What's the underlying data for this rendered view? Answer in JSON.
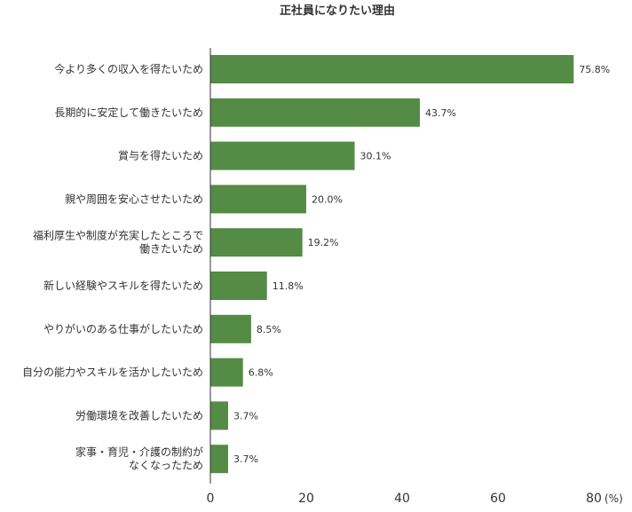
{
  "chart_data": {
    "type": "bar",
    "orientation": "horizontal",
    "title": "正社員になりたい理由",
    "categories": [
      [
        "今より多くの収入を得たいため"
      ],
      [
        "長期的に安定して働きたいため"
      ],
      [
        "賞与を得たいため"
      ],
      [
        "親や周囲を安心させたいため"
      ],
      [
        "福利厚生や制度が充実したところで",
        "働きたいため"
      ],
      [
        "新しい経験やスキルを得たいため"
      ],
      [
        "やりがいのある仕事がしたいため"
      ],
      [
        "自分の能力やスキルを活かしたいため"
      ],
      [
        "労働環境を改善したいため"
      ],
      [
        "家事・育児・介護の制約が",
        "なくなったため"
      ]
    ],
    "values": [
      75.8,
      43.7,
      30.1,
      20.0,
      19.2,
      11.8,
      8.5,
      6.8,
      3.7,
      3.7
    ],
    "value_labels": [
      "75.8%",
      "43.7%",
      "30.1%",
      "20.0%",
      "19.2%",
      "11.8%",
      "8.5%",
      "6.8%",
      "3.7%",
      "3.7%"
    ],
    "x_ticks": [
      0,
      20,
      40,
      60,
      80
    ],
    "x_unit": "(%)",
    "xlim": [
      0,
      80
    ],
    "bar_color": "#548b45",
    "grid": false,
    "legend": "none"
  }
}
